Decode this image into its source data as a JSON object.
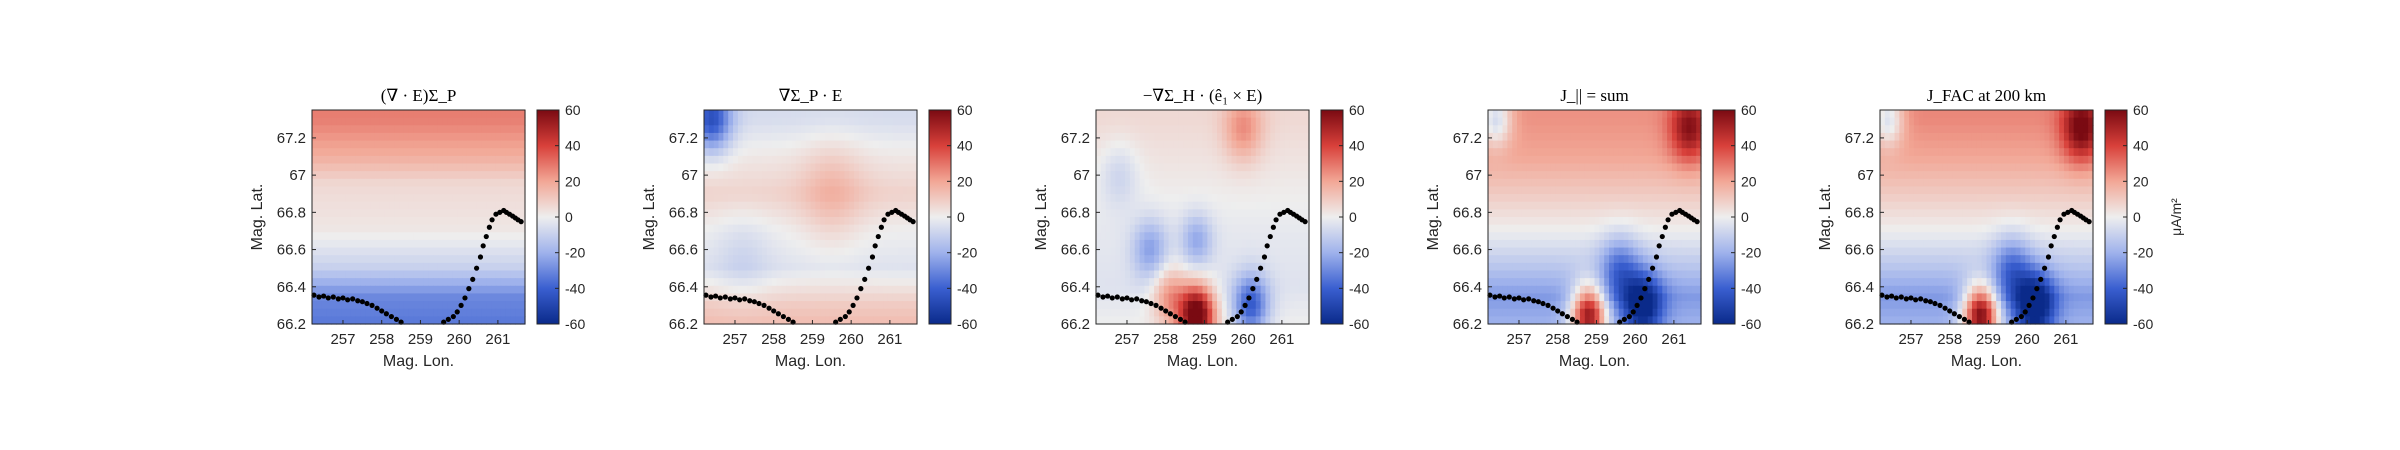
{
  "chart_data": {
    "type": "heatmap",
    "colormap": [
      "#0a2a8a",
      "#3a5fd0",
      "#9fb2ec",
      "#eeeeee",
      "#f2a796",
      "#d8403a",
      "#7a0a12"
    ],
    "colorbar_label": "μA/m²",
    "xlabel": "Mag. Lon.",
    "ylabel": "Mag. Lat.",
    "xlim": [
      256.2,
      261.7
    ],
    "ylim": [
      66.2,
      67.35
    ],
    "x_ticks": [
      "257",
      "258",
      "259",
      "260",
      "261"
    ],
    "x_tick_values": [
      257,
      258,
      259,
      260,
      261
    ],
    "y_ticks": [
      "66.2",
      "66.4",
      "66.6",
      "66.8",
      "67",
      "67.2"
    ],
    "y_tick_values": [
      66.2,
      66.4,
      66.6,
      66.8,
      67.0,
      67.2
    ],
    "clim": [
      -60,
      60
    ],
    "colorbar_ticks": [
      "60",
      "40",
      "20",
      "0",
      "-20",
      "-40",
      "-60"
    ],
    "colorbar_tick_values": [
      60,
      40,
      20,
      0,
      -20,
      -40,
      -60
    ],
    "track_points": [
      [
        256.25,
        66.355
      ],
      [
        256.38,
        66.345
      ],
      [
        256.5,
        66.35
      ],
      [
        256.62,
        66.34
      ],
      [
        256.75,
        66.345
      ],
      [
        256.88,
        66.335
      ],
      [
        257.0,
        66.34
      ],
      [
        257.12,
        66.33
      ],
      [
        257.25,
        66.335
      ],
      [
        257.38,
        66.325
      ],
      [
        257.5,
        66.32
      ],
      [
        257.62,
        66.31
      ],
      [
        257.75,
        66.3
      ],
      [
        257.88,
        66.285
      ],
      [
        258.0,
        66.27
      ],
      [
        258.12,
        66.255
      ],
      [
        258.25,
        66.24
      ],
      [
        258.38,
        66.225
      ],
      [
        258.5,
        66.21
      ],
      [
        259.6,
        66.21
      ],
      [
        259.72,
        66.225
      ],
      [
        259.85,
        66.24
      ],
      [
        259.95,
        66.265
      ],
      [
        260.05,
        66.3
      ],
      [
        260.15,
        66.34
      ],
      [
        260.25,
        66.39
      ],
      [
        260.35,
        66.44
      ],
      [
        260.45,
        66.5
      ],
      [
        260.55,
        66.56
      ],
      [
        260.62,
        66.62
      ],
      [
        260.7,
        66.67
      ],
      [
        260.78,
        66.72
      ],
      [
        260.85,
        66.76
      ],
      [
        260.95,
        66.79
      ],
      [
        261.05,
        66.8
      ],
      [
        261.15,
        66.81
      ],
      [
        261.22,
        66.8
      ],
      [
        261.3,
        66.79
      ],
      [
        261.38,
        66.78
      ],
      [
        261.45,
        66.77
      ],
      [
        261.52,
        66.76
      ],
      [
        261.6,
        66.75
      ]
    ],
    "panels": [
      {
        "title": "(∇ · E)Σ_P",
        "value_model": {
          "layers": [
            {
              "lat": 67.3,
              "value": 28
            },
            {
              "lat": 67.1,
              "value": 18
            },
            {
              "lat": 66.95,
              "value": 6
            },
            {
              "lat": 66.7,
              "value": 2
            },
            {
              "lat": 66.5,
              "value": -10
            },
            {
              "lat": 66.35,
              "value": -30
            },
            {
              "lat": 66.2,
              "value": -34
            }
          ],
          "blobs": []
        }
      },
      {
        "title": "∇Σ_P · E",
        "value_model": {
          "layers": [
            {
              "lat": 67.3,
              "value": -6
            },
            {
              "lat": 67.1,
              "value": 2
            },
            {
              "lat": 66.9,
              "value": 8
            },
            {
              "lat": 66.7,
              "value": 0
            },
            {
              "lat": 66.5,
              "value": -4
            },
            {
              "lat": 66.3,
              "value": 10
            },
            {
              "lat": 66.2,
              "value": 14
            }
          ],
          "blobs": [
            {
              "lon": 256.4,
              "lat": 67.3,
              "r": 0.5,
              "value": -40
            },
            {
              "lon": 259.5,
              "lat": 66.9,
              "r": 0.8,
              "value": 10
            },
            {
              "lon": 257.2,
              "lat": 66.55,
              "r": 0.7,
              "value": -6
            }
          ]
        }
      },
      {
        "title": "−∇Σ_H · (ê₁ × E)",
        "value_model": {
          "layers": [
            {
              "lat": 67.3,
              "value": 6
            },
            {
              "lat": 67.0,
              "value": 2
            },
            {
              "lat": 66.7,
              "value": -2
            },
            {
              "lat": 66.4,
              "value": -4
            },
            {
              "lat": 66.2,
              "value": 0
            }
          ],
          "blobs": [
            {
              "lon": 258.8,
              "lat": 66.25,
              "r": 0.45,
              "value": 70
            },
            {
              "lon": 258.1,
              "lat": 66.35,
              "r": 0.45,
              "value": 25
            },
            {
              "lon": 260.2,
              "lat": 66.3,
              "r": 0.45,
              "value": -40
            },
            {
              "lon": 257.6,
              "lat": 66.6,
              "r": 0.45,
              "value": -22
            },
            {
              "lon": 258.8,
              "lat": 66.65,
              "r": 0.4,
              "value": -20
            },
            {
              "lon": 260.0,
              "lat": 67.25,
              "r": 0.5,
              "value": 20
            },
            {
              "lon": 256.8,
              "lat": 67.0,
              "r": 0.5,
              "value": -10
            }
          ]
        }
      },
      {
        "title": "J_|| = sum",
        "value_model": {
          "layers": [
            {
              "lat": 67.3,
              "value": 24
            },
            {
              "lat": 67.1,
              "value": 20
            },
            {
              "lat": 66.9,
              "value": 10
            },
            {
              "lat": 66.7,
              "value": 0
            },
            {
              "lat": 66.5,
              "value": -14
            },
            {
              "lat": 66.35,
              "value": -26
            },
            {
              "lat": 66.2,
              "value": -20
            }
          ],
          "blobs": [
            {
              "lon": 261.4,
              "lat": 67.25,
              "r": 0.5,
              "value": 35
            },
            {
              "lon": 256.4,
              "lat": 67.3,
              "r": 0.4,
              "value": -30
            },
            {
              "lon": 258.8,
              "lat": 66.25,
              "r": 0.45,
              "value": 75
            },
            {
              "lon": 260.2,
              "lat": 66.3,
              "r": 0.5,
              "value": -45
            },
            {
              "lon": 259.6,
              "lat": 66.5,
              "r": 0.5,
              "value": -25
            }
          ]
        }
      },
      {
        "title": "J_FAC at 200 km",
        "value_model": {
          "layers": [
            {
              "lat": 67.3,
              "value": 26
            },
            {
              "lat": 67.1,
              "value": 20
            },
            {
              "lat": 66.9,
              "value": 10
            },
            {
              "lat": 66.7,
              "value": 0
            },
            {
              "lat": 66.5,
              "value": -14
            },
            {
              "lat": 66.35,
              "value": -26
            },
            {
              "lat": 66.2,
              "value": -20
            }
          ],
          "blobs": [
            {
              "lon": 261.4,
              "lat": 67.25,
              "r": 0.5,
              "value": 40
            },
            {
              "lon": 256.4,
              "lat": 67.3,
              "r": 0.4,
              "value": -30
            },
            {
              "lon": 258.8,
              "lat": 66.25,
              "r": 0.45,
              "value": 80
            },
            {
              "lon": 260.2,
              "lat": 66.3,
              "r": 0.5,
              "value": -50
            },
            {
              "lon": 259.6,
              "lat": 66.5,
              "r": 0.5,
              "value": -25
            }
          ]
        }
      }
    ]
  }
}
